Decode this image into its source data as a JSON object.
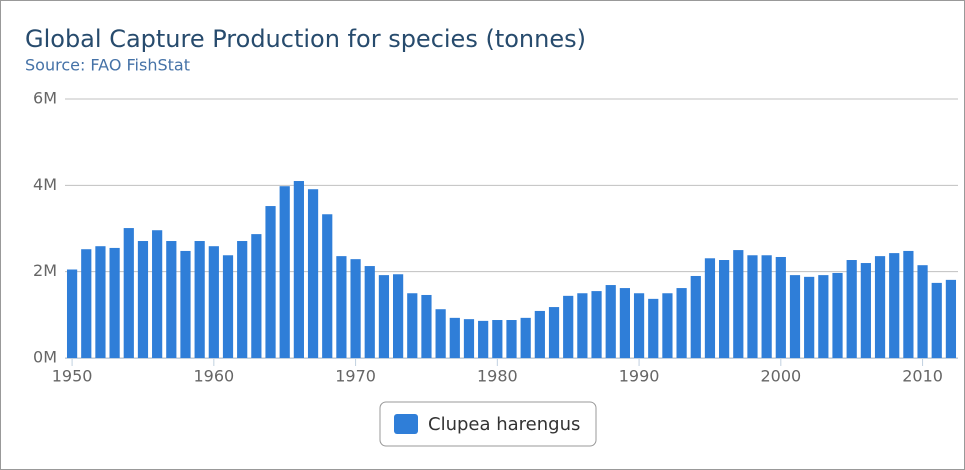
{
  "chart_data": {
    "type": "bar",
    "title": "Global Capture Production for species (tonnes)",
    "subtitle": "Source: FAO FishStat",
    "x": [
      1950,
      1951,
      1952,
      1953,
      1954,
      1955,
      1956,
      1957,
      1958,
      1959,
      1960,
      1961,
      1962,
      1963,
      1964,
      1965,
      1966,
      1967,
      1968,
      1969,
      1970,
      1971,
      1972,
      1973,
      1974,
      1975,
      1976,
      1977,
      1978,
      1979,
      1980,
      1981,
      1982,
      1983,
      1984,
      1985,
      1986,
      1987,
      1988,
      1989,
      1990,
      1991,
      1992,
      1993,
      1994,
      1995,
      1996,
      1997,
      1998,
      1999,
      2000,
      2001,
      2002,
      2003,
      2004,
      2005,
      2006,
      2007,
      2008,
      2009,
      2010,
      2011,
      2012
    ],
    "series": [
      {
        "name": "Clupea harengus",
        "color": "#2f7ed8",
        "values": [
          2050000,
          2520000,
          2590000,
          2550000,
          3010000,
          2710000,
          2960000,
          2710000,
          2480000,
          2710000,
          2590000,
          2380000,
          2710000,
          2870000,
          3520000,
          3980000,
          4100000,
          3910000,
          3330000,
          2360000,
          2290000,
          2130000,
          1920000,
          1940000,
          1500000,
          1460000,
          1130000,
          930000,
          900000,
          860000,
          880000,
          880000,
          930000,
          1090000,
          1180000,
          1440000,
          1500000,
          1550000,
          1690000,
          1620000,
          1500000,
          1370000,
          1500000,
          1620000,
          1900000,
          2310000,
          2270000,
          2500000,
          2380000,
          2380000,
          2340000,
          1920000,
          1880000,
          1920000,
          1970000,
          2270000,
          2200000,
          2360000,
          2430000,
          2480000,
          2150000,
          1740000,
          1810000
        ]
      }
    ],
    "xlim": [
      1949.5,
      2012.5
    ],
    "xticks": [
      1950,
      1960,
      1970,
      1980,
      1990,
      2000,
      2010
    ],
    "ylim": [
      0,
      6000000
    ],
    "yticks": [
      {
        "value": 0,
        "label": "0M"
      },
      {
        "value": 2000000,
        "label": "2M"
      },
      {
        "value": 4000000,
        "label": "4M"
      },
      {
        "value": 6000000,
        "label": "6M"
      }
    ],
    "grid": true,
    "legend": "bottom"
  }
}
